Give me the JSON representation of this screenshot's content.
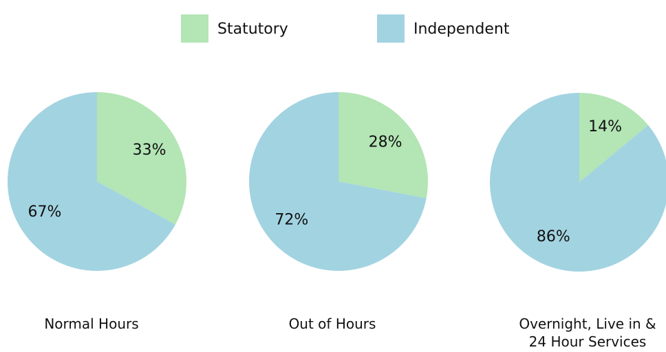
{
  "chart_data": [
    {
      "type": "pie",
      "title": "Normal Hours",
      "categories": [
        "Statutory",
        "Independent"
      ],
      "values": [
        33,
        67
      ],
      "value_labels": [
        "33%",
        "67%"
      ],
      "colors": [
        "#b3e5b5",
        "#a2d3e1"
      ]
    },
    {
      "type": "pie",
      "title": "Out of Hours",
      "categories": [
        "Statutory",
        "Independent"
      ],
      "values": [
        28,
        72
      ],
      "value_labels": [
        "28%",
        "72%"
      ],
      "colors": [
        "#b3e5b5",
        "#a2d3e1"
      ]
    },
    {
      "type": "pie",
      "title": "Overnight, Live in & 24 Hour Services",
      "categories": [
        "Statutory",
        "Independent"
      ],
      "values": [
        14,
        86
      ],
      "value_labels": [
        "14%",
        "86%"
      ],
      "colors": [
        "#b3e5b5",
        "#a2d3e1"
      ]
    }
  ]
}
